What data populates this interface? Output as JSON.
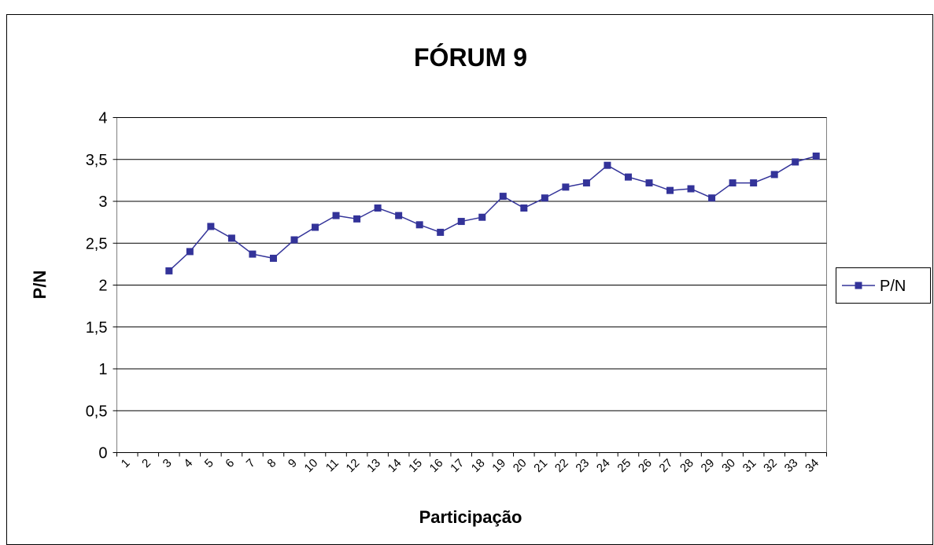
{
  "chart_data": {
    "type": "line",
    "title": "FÓRUM 9",
    "x_label": "Participação",
    "y_label": "P/N",
    "categories": [
      "1",
      "2",
      "3",
      "4",
      "5",
      "6",
      "7",
      "8",
      "9",
      "10",
      "11",
      "12",
      "13",
      "14",
      "15",
      "16",
      "17",
      "18",
      "19",
      "20",
      "21",
      "22",
      "23",
      "24",
      "25",
      "26",
      "27",
      "28",
      "29",
      "30",
      "31",
      "32",
      "33",
      "34"
    ],
    "series": [
      {
        "name": "P/N",
        "color": "#333399",
        "values": [
          null,
          null,
          2.17,
          2.4,
          2.7,
          2.56,
          2.37,
          2.32,
          2.54,
          2.69,
          2.83,
          2.79,
          2.92,
          2.83,
          2.72,
          2.63,
          2.76,
          2.81,
          3.06,
          2.92,
          3.04,
          3.17,
          3.22,
          3.43,
          3.29,
          3.22,
          3.13,
          3.15,
          3.04,
          3.22,
          3.22,
          3.32,
          3.47,
          3.54
        ]
      }
    ],
    "ylim": [
      0,
      4
    ],
    "yticks": [
      0,
      {
        "value": 0.5,
        "label": "0,5"
      },
      1,
      {
        "value": 1.5,
        "label": "1,5"
      },
      2,
      {
        "value": 2.5,
        "label": "2,5"
      },
      3,
      {
        "value": 3.5,
        "label": "3,5"
      },
      4
    ],
    "grid": true,
    "legend": "right"
  }
}
